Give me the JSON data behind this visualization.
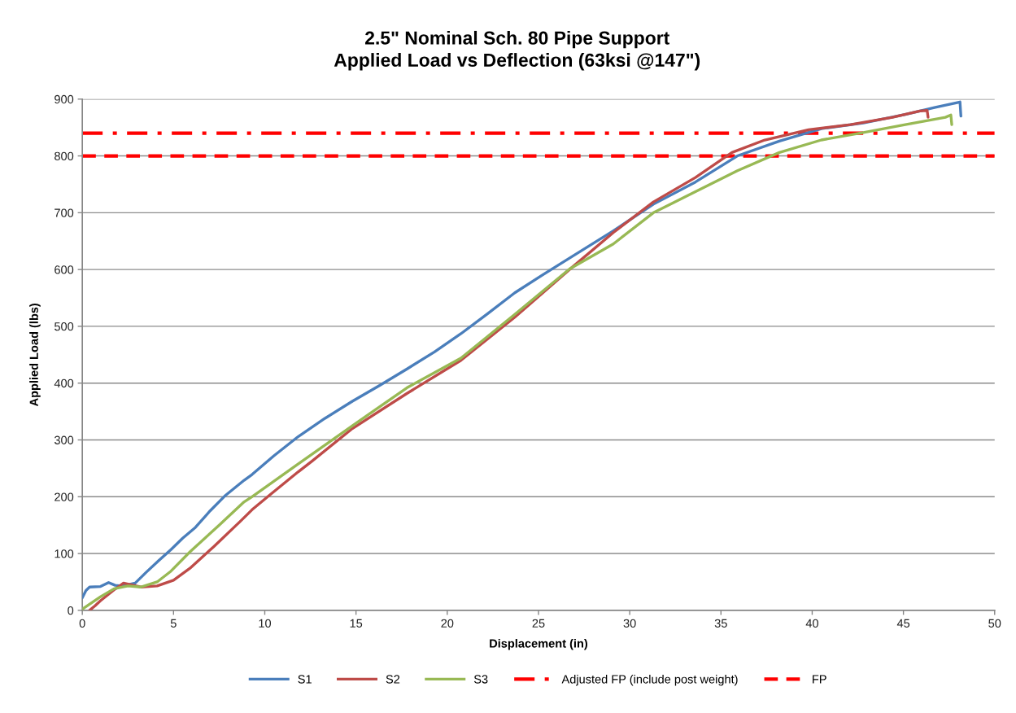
{
  "chart_data": {
    "type": "line",
    "title": "2.5\" Nominal Sch. 80 Pipe Support\nApplied Load vs Deflection (63ksi @147\")",
    "xlabel": "Displacement (in)",
    "ylabel": "Applied Load (lbs)",
    "series": [
      {
        "name": "S1",
        "color": "#4a7ebb",
        "x": [
          0,
          0.2,
          0.4,
          1.0,
          1.44,
          1.8,
          2.2,
          2.9,
          3.5,
          4.2,
          4.86,
          5.5,
          6.2,
          7.0,
          7.8,
          8.87,
          9.3,
          10.5,
          11.84,
          13.3,
          14.8,
          16.3,
          17.8,
          19.3,
          20.75,
          22.2,
          23.7,
          25.2,
          26.7,
          29.1,
          31.3,
          33.6,
          35.9,
          38.2,
          40.5,
          42.8,
          45.1,
          46.7,
          48.1,
          48.15
        ],
        "values": [
          22,
          35,
          41,
          42,
          49,
          44,
          43,
          48,
          67,
          88,
          107,
          127,
          146,
          175,
          201,
          229,
          239,
          272,
          306,
          338,
          368,
          396,
          425,
          455,
          487,
          522,
          559,
          590,
          620,
          668,
          715,
          754,
          800,
          826,
          848,
          858,
          873,
          885,
          895,
          870
        ]
      },
      {
        "name": "S2",
        "color": "#be4b48",
        "x": [
          0.4,
          0.7,
          1.0,
          1.74,
          2.26,
          3.2,
          4.1,
          5.0,
          5.9,
          7.2,
          8.7,
          9.3,
          10.35,
          11.84,
          12.6,
          14.8,
          17.8,
          20.75,
          23.7,
          26.7,
          29.1,
          31.3,
          33.6,
          35.6,
          37.4,
          39.8,
          42.1,
          44.4,
          45.9,
          46.3,
          46.35
        ],
        "values": [
          0,
          8,
          17,
          36,
          48,
          41,
          43,
          53,
          74,
          112,
          158,
          177,
          205,
          244,
          263,
          320,
          382,
          440,
          516,
          600,
          665,
          719,
          762,
          806,
          828,
          846,
          855,
          868,
          879,
          880,
          868
        ]
      },
      {
        "name": "S3",
        "color": "#98b954",
        "x": [
          0,
          1.0,
          1.74,
          2.5,
          3.2,
          4.1,
          4.86,
          5.9,
          7.5,
          8.87,
          9.3,
          11.84,
          14.8,
          17.8,
          20.75,
          23.7,
          26.7,
          29.1,
          31.3,
          33.6,
          35.9,
          38.2,
          40.5,
          42.8,
          45.1,
          47.3,
          47.6,
          47.65
        ],
        "values": [
          2,
          24,
          38,
          43,
          41,
          50,
          69,
          103,
          150,
          191,
          200,
          258,
          325,
          392,
          444,
          521,
          601,
          645,
          700,
          737,
          774,
          806,
          828,
          841,
          855,
          868,
          872,
          855
        ]
      }
    ],
    "ref_lines": [
      {
        "axis": "y",
        "value": 840,
        "label": "Adjusted FP (include post weight)",
        "color": "#ff0000",
        "line_style": "dashdot"
      },
      {
        "axis": "y",
        "value": 800,
        "label": "FP",
        "color": "#ff0000",
        "line_style": "dashed"
      }
    ],
    "xlim": [
      0,
      50
    ],
    "xticks": [
      0,
      5,
      10,
      15,
      20,
      25,
      30,
      35,
      40,
      45,
      50
    ],
    "ylim": [
      0,
      900
    ],
    "yticks": [
      0,
      100,
      200,
      300,
      400,
      500,
      600,
      700,
      800,
      900
    ],
    "grid": "y",
    "legend": "bottom"
  }
}
